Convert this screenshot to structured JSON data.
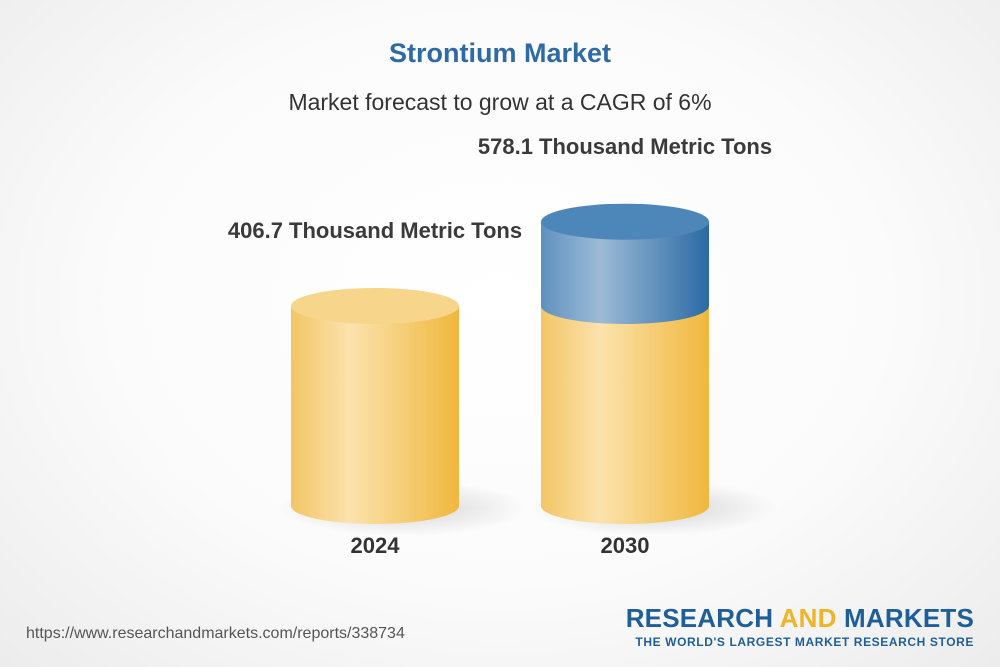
{
  "title": "Strontium Market",
  "subtitle": "Market forecast to grow at a CAGR of 6%",
  "chart_data": {
    "type": "bar",
    "categories": [
      "2024",
      "2030"
    ],
    "values": [
      406.7,
      578.1
    ],
    "value_labels": [
      "406.7 Thousand Metric Tons",
      "578.1 Thousand Metric Tons"
    ],
    "unit": "Thousand Metric Tons",
    "highlight_base_value": 406.7,
    "grid": false,
    "legend": "none",
    "colors": {
      "base": "#f5c458",
      "base_light": "#fbe6b0",
      "growth": "#2f6fa8",
      "growth_light": "#8fb4d4"
    }
  },
  "source_url": "https://www.researchandmarkets.com/reports/338734",
  "logo": {
    "word1": "RESEARCH",
    "word2": "AND",
    "word3": "MARKETS",
    "tagline": "THE WORLD'S LARGEST MARKET RESEARCH STORE"
  }
}
